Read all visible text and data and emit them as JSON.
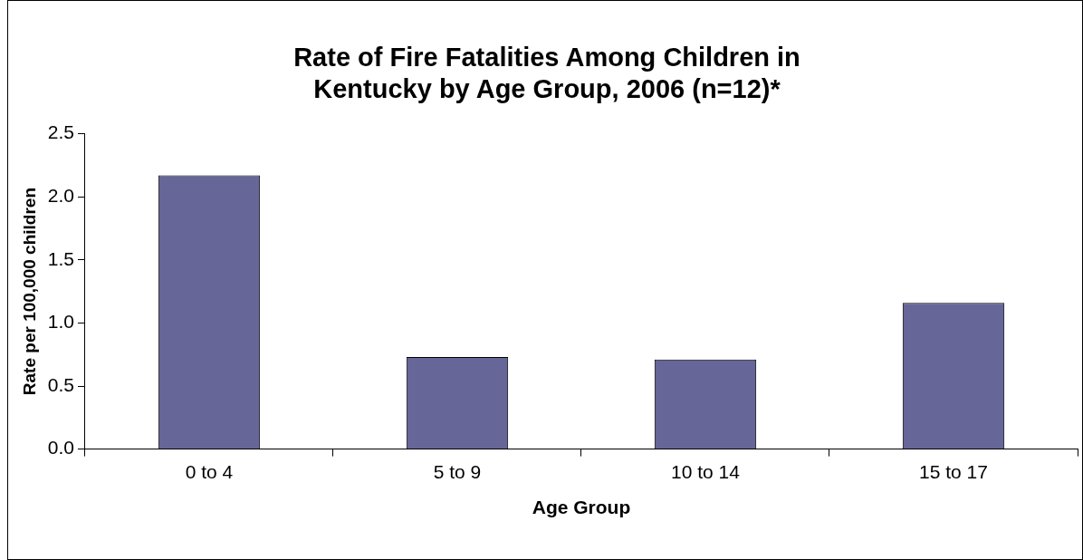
{
  "chart_data": {
    "type": "bar",
    "title": [
      "Rate of Fire Fatalities Among Children in",
      "Kentucky by Age Group, 2006 (n=12)*"
    ],
    "xlabel": "Age Group",
    "ylabel": "Rate per 100,000 children",
    "categories": [
      "0 to 4",
      "5 to 9",
      "10 to 14",
      "15 to 17"
    ],
    "values": [
      2.17,
      0.73,
      0.71,
      1.16
    ],
    "color": "#666699",
    "ylim": [
      0,
      2.5
    ],
    "yticks": [
      {
        "value": 0,
        "label": "0.0"
      },
      {
        "value": 0.5,
        "label": "0.5"
      },
      {
        "value": 1,
        "label": "1.0"
      },
      {
        "value": 1.5,
        "label": "1.5"
      },
      {
        "value": 2,
        "label": "2.0"
      },
      {
        "value": 2.5,
        "label": "2.5"
      }
    ],
    "grid": false,
    "legend": false
  }
}
